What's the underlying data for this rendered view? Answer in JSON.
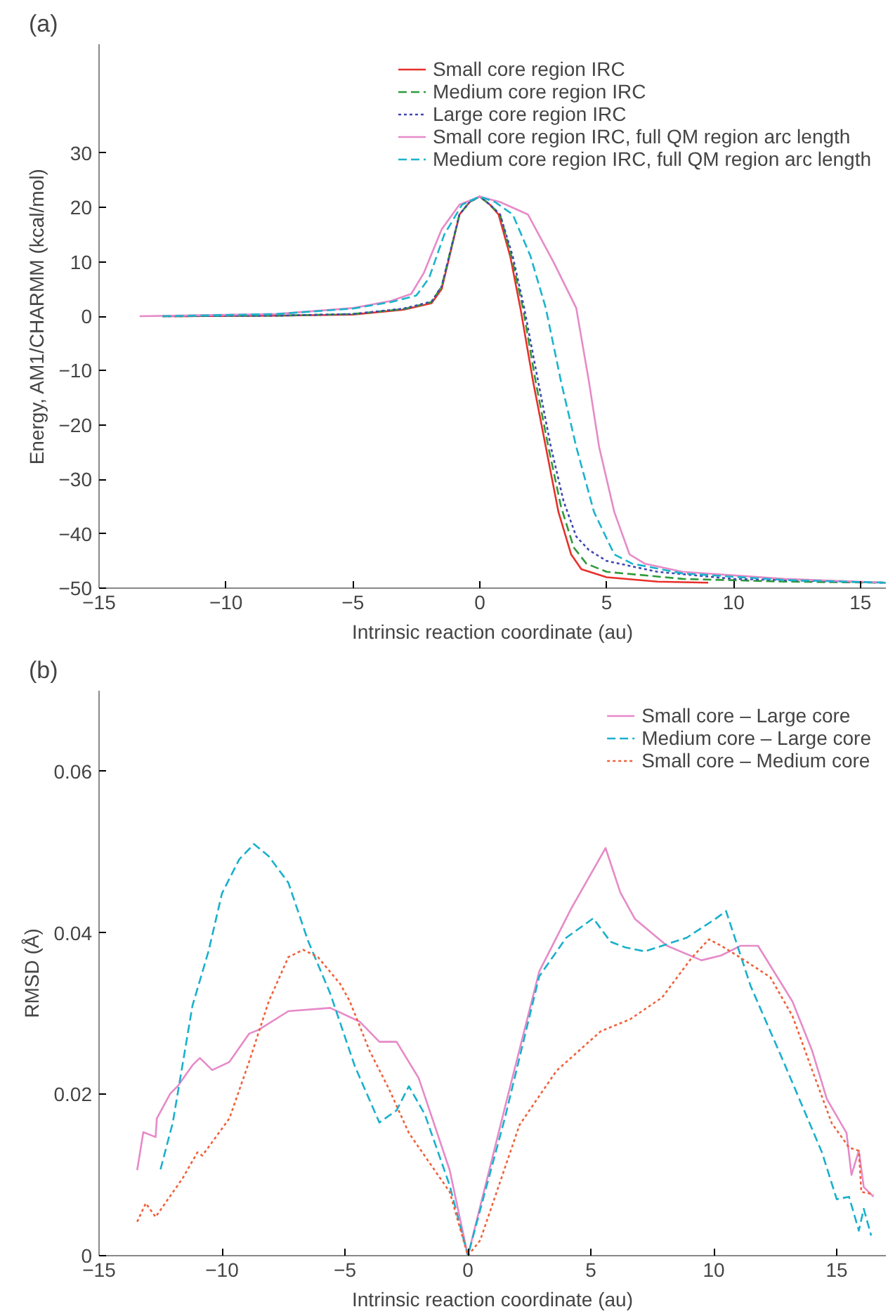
{
  "chart_data": [
    {
      "type": "line",
      "annotations": [
        "(a)"
      ],
      "xlabel": "Intrinsic reaction coordinate (au)",
      "ylabel": "Energy, AM1/CHARMM (kcal/mol)",
      "xlim": [
        -15,
        16
      ],
      "ylim": [
        -50,
        50
      ],
      "xticks": [
        -15,
        -10,
        -5,
        0,
        5,
        10,
        15
      ],
      "yticks": [
        -50,
        -40,
        -30,
        -20,
        -10,
        0,
        10,
        20,
        30
      ],
      "grid": false,
      "legend": "top right",
      "series": [
        {
          "name": "Small core region IRC",
          "color": "#e8302a",
          "line_style": "solid",
          "x": [
            -12.5,
            -8,
            -5,
            -3,
            -1.9,
            -1.5,
            -0.8,
            -0.4,
            0,
            0.4,
            0.74,
            1.2,
            1.6,
            2.1,
            2.6,
            3.1,
            3.6,
            4,
            5,
            7,
            9
          ],
          "values": [
            0,
            0.1,
            0.3,
            1.2,
            2.4,
            5,
            18.7,
            21,
            22,
            20.5,
            18.7,
            11,
            1.5,
            -12,
            -24,
            -36,
            -43.8,
            -46.5,
            -48,
            -48.8,
            -49
          ]
        },
        {
          "name": "Medium core region IRC",
          "color": "#2e9a3a",
          "line_style": "dashed",
          "x": [
            -12.5,
            -8,
            -5,
            -3,
            -1.9,
            -1.5,
            -0.8,
            -0.4,
            0,
            0.4,
            0.8,
            1.25,
            1.7,
            2.2,
            2.7,
            3.2,
            3.7,
            4.2,
            5,
            8,
            12,
            16
          ],
          "values": [
            0,
            0.1,
            0.4,
            1.3,
            2.6,
            5.5,
            18.7,
            21,
            22,
            20.5,
            18.7,
            11,
            1.5,
            -12,
            -24,
            -35,
            -42.5,
            -45.5,
            -47,
            -48.3,
            -48.8,
            -49
          ]
        },
        {
          "name": "Large core region IRC",
          "color": "#4048b0",
          "line_style": "dotted",
          "x": [
            -12.5,
            -8,
            -5,
            -3,
            -1.9,
            -1.5,
            -0.8,
            -0.4,
            0,
            0.4,
            0.8,
            1.3,
            1.75,
            2.3,
            2.8,
            3.3,
            3.8,
            4.3,
            5,
            7,
            10,
            16
          ],
          "values": [
            0,
            0.1,
            0.4,
            1.4,
            2.7,
            5.5,
            18.7,
            21,
            22,
            20.5,
            18.7,
            11,
            1.5,
            -12,
            -24,
            -34,
            -40.5,
            -43,
            -45,
            -47,
            -48.3,
            -49
          ]
        },
        {
          "name": "Small core region IRC, full QM region arc length",
          "color": "#e68ac8",
          "line_style": "solid",
          "x": [
            -13.4,
            -8,
            -5,
            -3.5,
            -2.7,
            -2.2,
            -1.5,
            -0.8,
            0,
            0.8,
            1.9,
            2.9,
            3.8,
            4.3,
            4.7,
            5.3,
            5.9,
            6.5,
            8,
            12,
            16
          ],
          "values": [
            0,
            0.4,
            1.5,
            2.8,
            4.1,
            8,
            16,
            20.5,
            22,
            21,
            18.7,
            10,
            1.5,
            -12,
            -24,
            -36,
            -43.8,
            -45.5,
            -47,
            -48.3,
            -49
          ]
        },
        {
          "name": "Medium core region IRC, full QM region arc length",
          "color": "#19b4cc",
          "line_style": "dashed",
          "x": [
            -12.5,
            -8,
            -5,
            -3.5,
            -2.5,
            -2,
            -1.4,
            -0.7,
            0,
            0.6,
            1.3,
            2,
            2.6,
            3.2,
            3.8,
            4.5,
            5.3,
            6,
            8,
            12,
            16
          ],
          "values": [
            0,
            0.4,
            1.4,
            2.6,
            3.8,
            7,
            15,
            20.5,
            22,
            21,
            18.7,
            11,
            1.5,
            -12,
            -24,
            -36,
            -43.8,
            -45.5,
            -47.3,
            -48.5,
            -49
          ]
        }
      ]
    },
    {
      "type": "line",
      "annotations": [
        "(b)"
      ],
      "xlabel": "Intrinsic reaction coordinate (au)",
      "ylabel": "RMSD (Å)",
      "xlim": [
        -15,
        17
      ],
      "ylim": [
        0,
        0.07
      ],
      "xticks": [
        -15,
        -10,
        -5,
        0,
        5,
        10,
        15
      ],
      "yticks": [
        0,
        0.02,
        0.04,
        0.06
      ],
      "grid": false,
      "legend": "top right",
      "series": [
        {
          "name": "Small core – Large core",
          "color": "#e68ac8",
          "line_style": "solid",
          "x": [
            -13.45,
            -13.2,
            -12.7,
            -12.65,
            -12.1,
            -11.8,
            -11.2,
            -10.9,
            -10.4,
            -9.7,
            -8.9,
            -8.5,
            -7.3,
            -5.6,
            -4.4,
            -3.6,
            -2.9,
            -2,
            -0.74,
            0,
            1.5,
            2.9,
            4.2,
            5.6,
            6.2,
            6.8,
            8.1,
            9.5,
            10.3,
            11.1,
            11.8,
            13.2,
            14,
            14.6,
            15.4,
            15.6,
            15.9,
            16.1,
            16.5
          ],
          "values": [
            0.0106,
            0.0153,
            0.0147,
            0.017,
            0.0201,
            0.021,
            0.0236,
            0.0245,
            0.023,
            0.024,
            0.0275,
            0.028,
            0.0303,
            0.0307,
            0.029,
            0.0265,
            0.0265,
            0.022,
            0.0106,
            0,
            0.0183,
            0.0352,
            0.043,
            0.0505,
            0.045,
            0.0417,
            0.0384,
            0.0366,
            0.0372,
            0.0384,
            0.0384,
            0.0315,
            0.0254,
            0.0194,
            0.0152,
            0.01,
            0.013,
            0.0085,
            0.0073
          ]
        },
        {
          "name": "Medium core – Large core",
          "color": "#19b0cc",
          "line_style": "dashed",
          "x": [
            -12.5,
            -12,
            -11.2,
            -10.55,
            -10,
            -9.3,
            -8.7,
            -8.1,
            -7.3,
            -6.5,
            -5.6,
            -4.6,
            -3.6,
            -2.9,
            -2.4,
            -1.75,
            -0.74,
            0,
            1.5,
            2.9,
            4,
            5.1,
            5.8,
            6.4,
            7.2,
            8.9,
            10.1,
            10.5,
            11.5,
            12.8,
            14.4,
            15,
            15.5,
            15.9,
            16.1,
            16.4
          ],
          "values": [
            0.0107,
            0.0165,
            0.031,
            0.0377,
            0.0449,
            0.0491,
            0.051,
            0.0495,
            0.0462,
            0.039,
            0.0325,
            0.0235,
            0.0165,
            0.018,
            0.021,
            0.0175,
            0.0087,
            0,
            0.017,
            0.0346,
            0.0394,
            0.0418,
            0.0389,
            0.0382,
            0.0377,
            0.0394,
            0.0418,
            0.0427,
            0.0334,
            0.0243,
            0.0128,
            0.007,
            0.0073,
            0.0031,
            0.0058,
            0.0025
          ]
        },
        {
          "name": "Small core – Medium core",
          "color": "#f0603a",
          "line_style": "dotted",
          "x": [
            -13.45,
            -13.1,
            -12.7,
            -11.6,
            -11,
            -10.8,
            -9.7,
            -8.9,
            -8.1,
            -7.3,
            -6.7,
            -6.1,
            -5.2,
            -4.8,
            -4,
            -3.2,
            -2.4,
            -0.74,
            0,
            0.5,
            2.1,
            3.6,
            5.4,
            6.6,
            7.9,
            9.1,
            9.8,
            10.3,
            11.1,
            12.3,
            13.2,
            14,
            14.8,
            15.5,
            15.9,
            16,
            16.5
          ],
          "values": [
            0.0042,
            0.0065,
            0.0048,
            0.0096,
            0.0128,
            0.0124,
            0.017,
            0.024,
            0.0315,
            0.037,
            0.0379,
            0.037,
            0.0337,
            0.0315,
            0.0254,
            0.0206,
            0.0152,
            0.0079,
            0,
            0.0019,
            0.0162,
            0.0229,
            0.0278,
            0.0293,
            0.032,
            0.0369,
            0.0392,
            0.0384,
            0.0369,
            0.0345,
            0.0297,
            0.023,
            0.0164,
            0.0134,
            0.013,
            0.0079,
            0.0076
          ]
        }
      ]
    }
  ]
}
